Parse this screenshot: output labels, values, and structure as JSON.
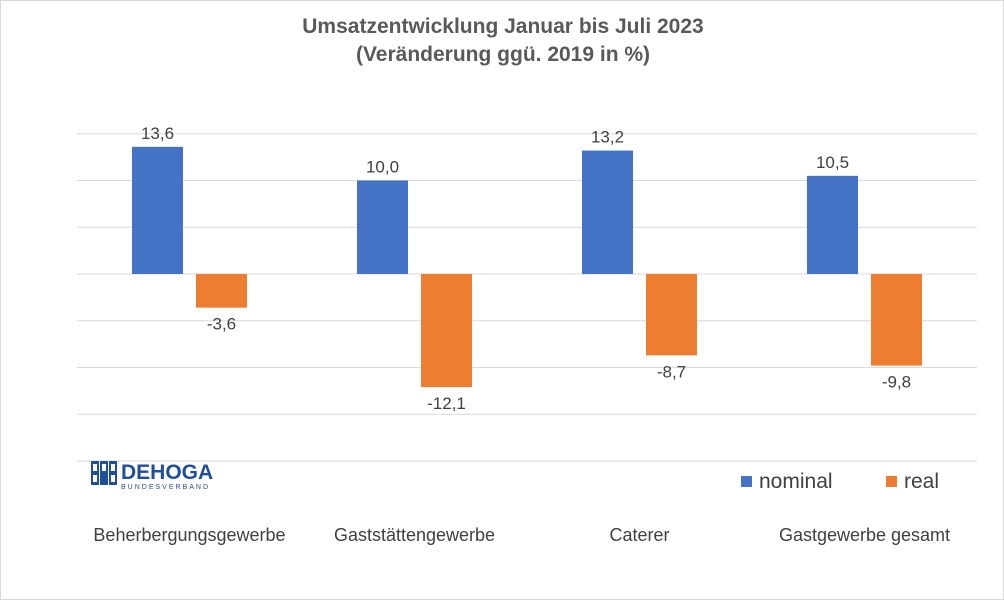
{
  "chart_data": {
    "type": "bar",
    "title": "Umsatzentwicklung Januar bis Juli 2023",
    "subtitle": "(Veränderung ggü. 2019 in %)",
    "categories": [
      "Beherbergungsgewerbe",
      "Gaststättengewerbe",
      "Caterer",
      "Gastgewerbe gesamt"
    ],
    "series": [
      {
        "name": "nominal",
        "values": [
          13.6,
          10.0,
          13.2,
          10.5
        ],
        "labels": [
          "13,6",
          "10,0",
          "13,2",
          "10,5"
        ],
        "color": "#4472c4"
      },
      {
        "name": "real",
        "values": [
          -3.6,
          -12.1,
          -8.7,
          -9.8
        ],
        "labels": [
          "-3,6",
          "-12,1",
          "-8,7",
          "-9,8"
        ],
        "color": "#ed7d31"
      }
    ],
    "ylim": [
      -20,
      15
    ],
    "y_grid_step": 5,
    "grid": true,
    "legend": "bottom-right",
    "gridline_color": "#d9d9d9"
  },
  "logo": {
    "name": "DEHOGA",
    "subline": "BUNDESVERBAND",
    "color": "#1f4e9a"
  }
}
